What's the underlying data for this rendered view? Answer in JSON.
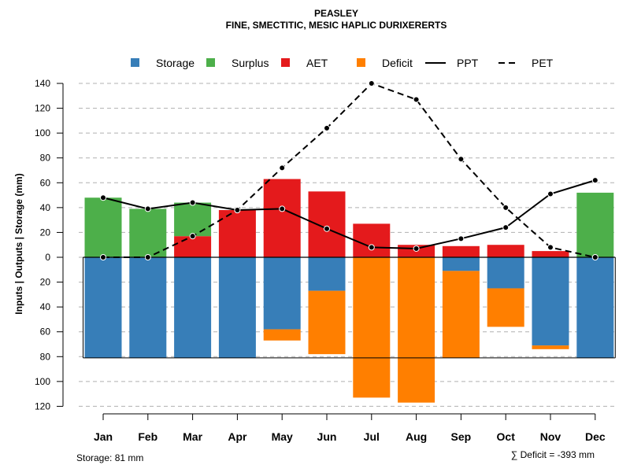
{
  "chart_data": {
    "type": "bar",
    "title": "PEASLEY",
    "subtitle": "FINE, SMECTITIC, MESIC HAPLIC DURIXERERTS",
    "ylabel": "Inputs | Outputs | Storage    (mm)",
    "categories": [
      "Jan",
      "Feb",
      "Mar",
      "Apr",
      "May",
      "Jun",
      "Jul",
      "Aug",
      "Sep",
      "Oct",
      "Nov",
      "Dec"
    ],
    "ylim": [
      -120,
      140
    ],
    "y_ticks": [
      140,
      120,
      100,
      80,
      60,
      40,
      20,
      0,
      -20,
      -40,
      -60,
      -80,
      -100,
      -120
    ],
    "y_tick_labels": [
      "140",
      "120",
      "100",
      "80",
      "60",
      "40",
      "20",
      "0",
      "20",
      "40",
      "60",
      "80",
      "100",
      "120"
    ],
    "storage_capacity": 81,
    "series": [
      {
        "name": "Storage",
        "color": "#377eb8",
        "values": [
          81,
          81,
          81,
          81,
          58,
          27,
          0,
          0,
          11,
          25,
          71,
          81
        ]
      },
      {
        "name": "Surplus",
        "color": "#4daf4a",
        "values": [
          48,
          39,
          27,
          0,
          0,
          0,
          0,
          0,
          0,
          0,
          0,
          52
        ]
      },
      {
        "name": "AET",
        "color": "#e41a1c",
        "values": [
          0,
          0,
          17,
          38,
          63,
          53,
          27,
          10,
          9,
          10,
          5,
          0
        ]
      },
      {
        "name": "Deficit",
        "color": "#ff7f00",
        "values": [
          0,
          0,
          0,
          0,
          9,
          51,
          113,
          117,
          70,
          31,
          3,
          0
        ]
      },
      {
        "name": "PPT",
        "color": "#000000",
        "line": "solid",
        "values": [
          48,
          39,
          44,
          38,
          39,
          23,
          8,
          7,
          15,
          24,
          51,
          62
        ]
      },
      {
        "name": "PET",
        "color": "#000000",
        "line": "dashed",
        "values": [
          0,
          0,
          17,
          38,
          72,
          104,
          140,
          127,
          79,
          40,
          8,
          0
        ]
      }
    ],
    "grid": true,
    "legend_position": "top"
  },
  "footer": {
    "storage_text": "Storage: 81 mm",
    "deficit_text": "∑ Deficit = -393 mm"
  }
}
